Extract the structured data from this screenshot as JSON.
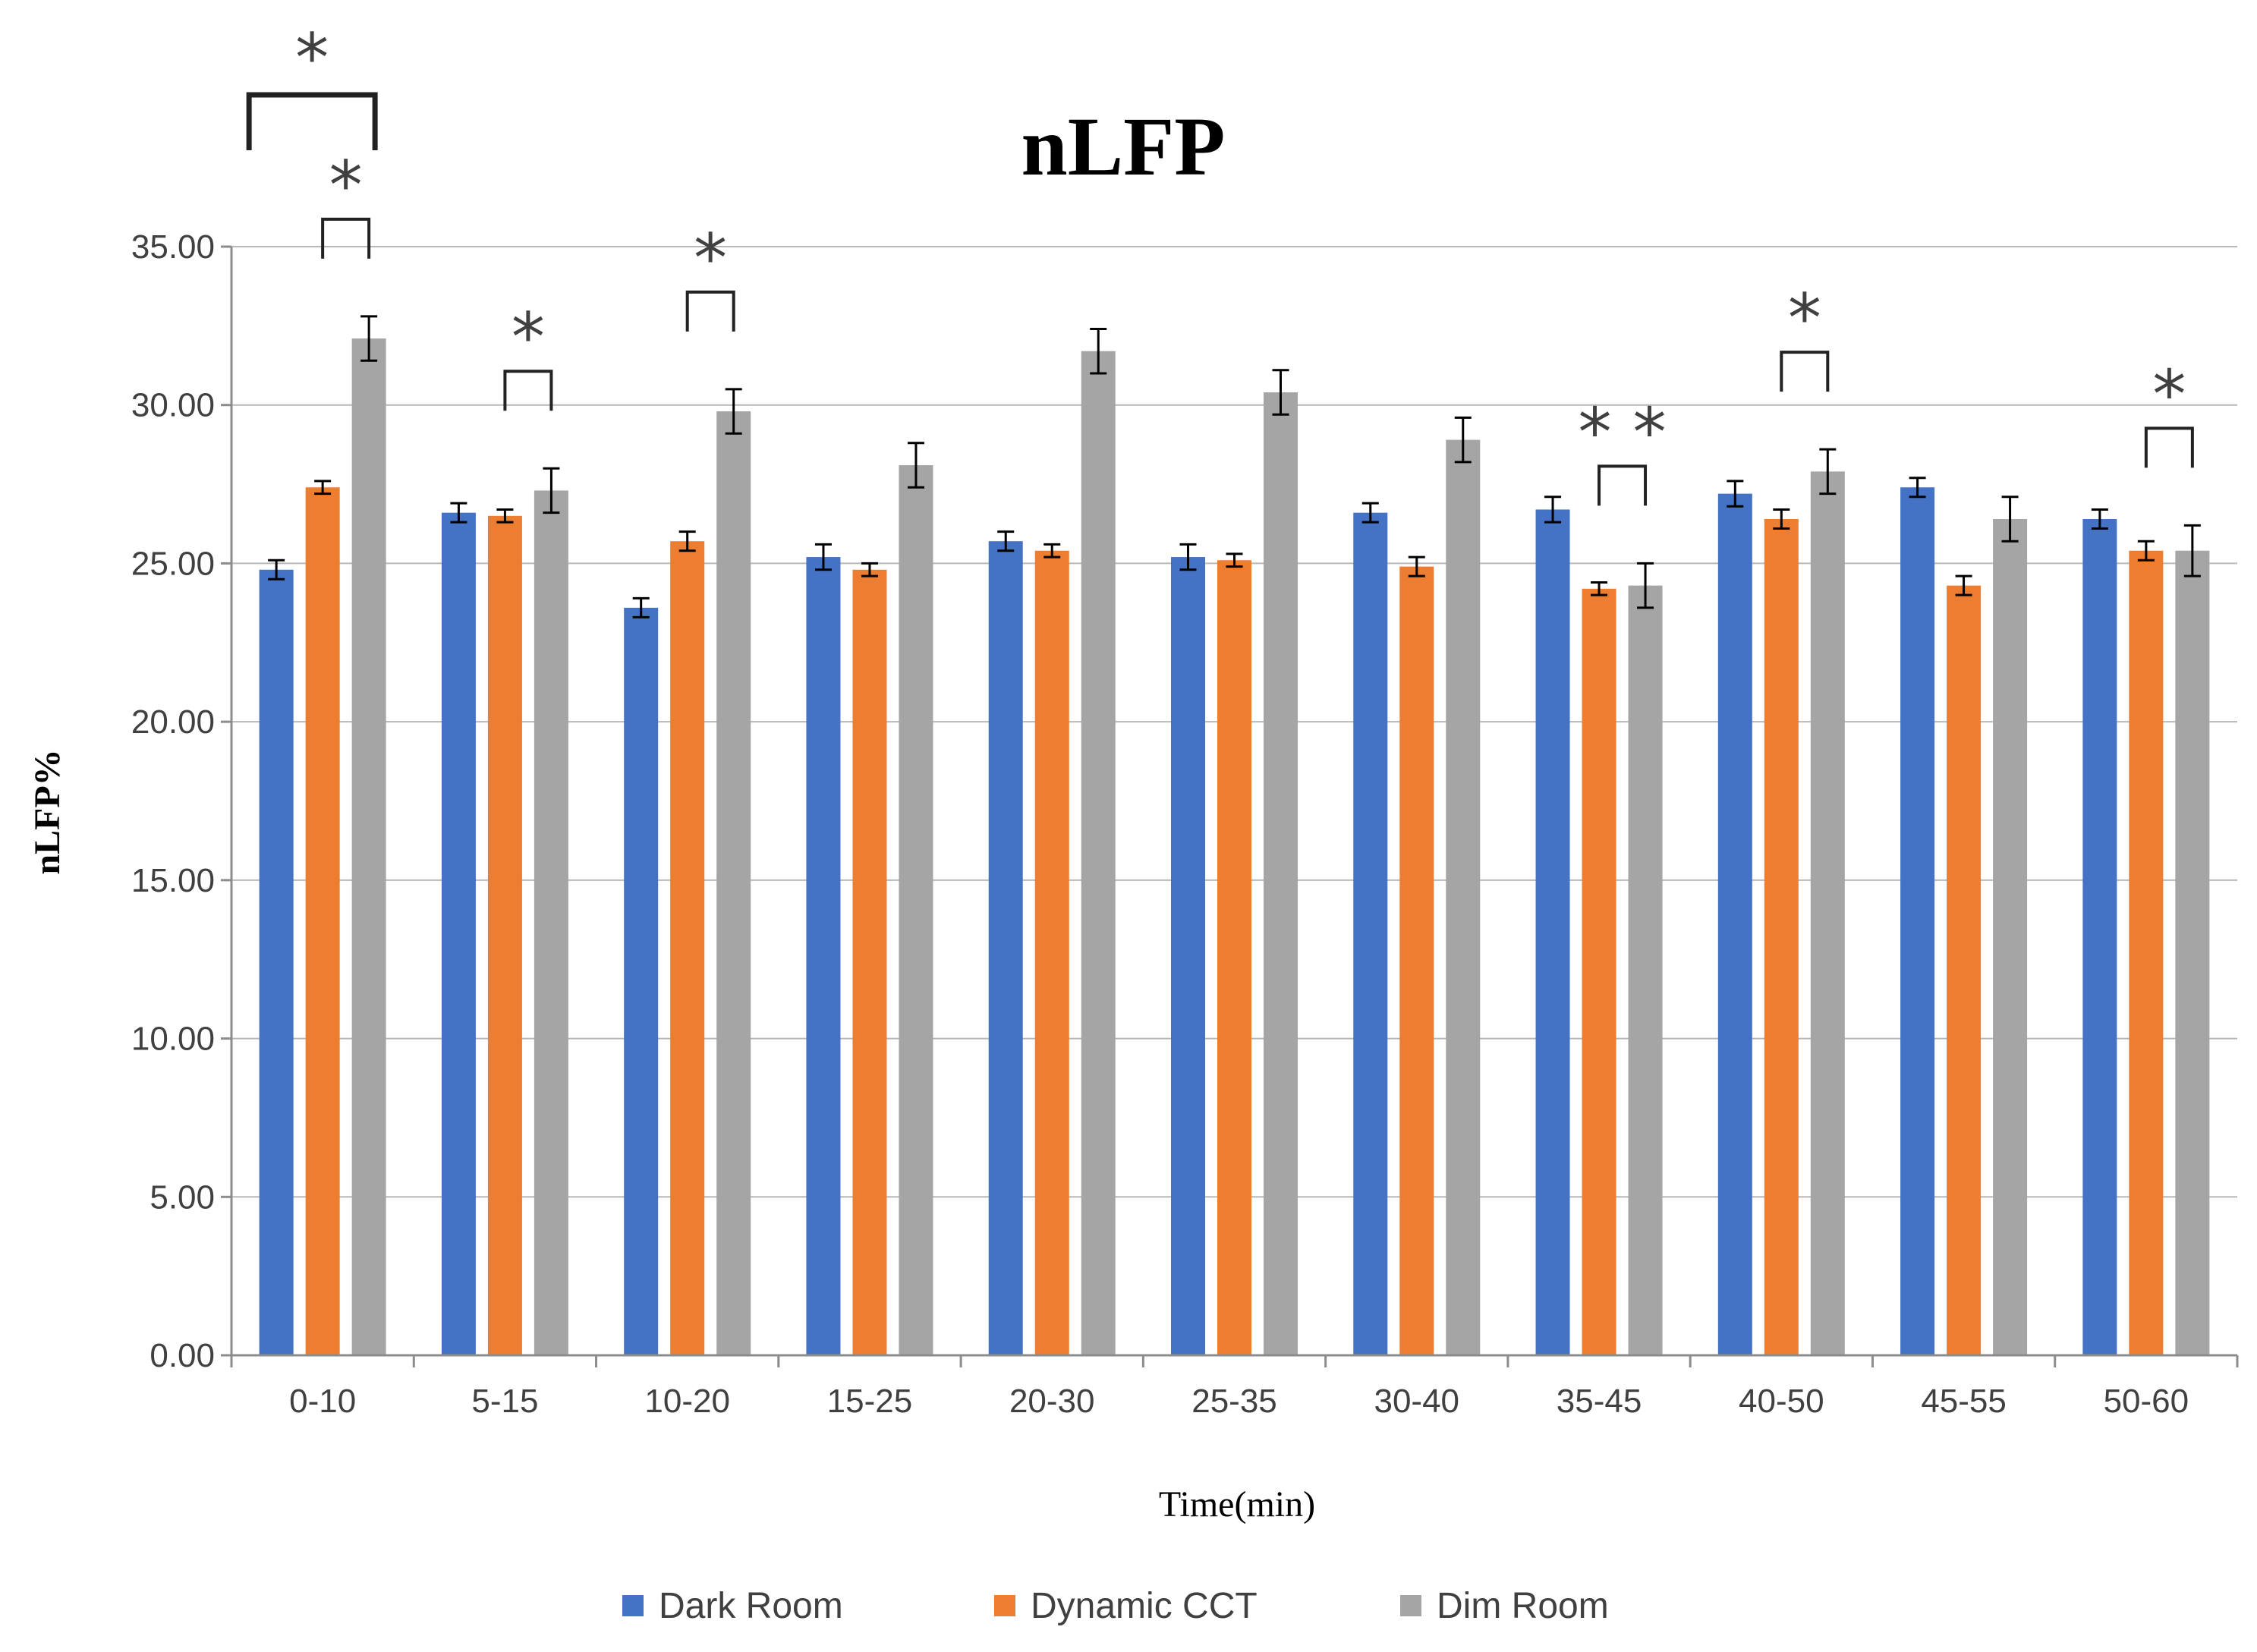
{
  "chart_data": {
    "type": "bar",
    "title": "nLFP",
    "xlabel": "Time(min)",
    "ylabel": "nLFP%",
    "ylim": [
      0,
      35
    ],
    "yticks": [
      "0.00",
      "5.00",
      "10.00",
      "15.00",
      "20.00",
      "25.00",
      "30.00",
      "35.00"
    ],
    "ytick_values": [
      0,
      5,
      10,
      15,
      20,
      25,
      30,
      35
    ],
    "categories": [
      "0-10",
      "5-15",
      "10-20",
      "15-25",
      "20-30",
      "25-35",
      "30-40",
      "35-45",
      "40-50",
      "45-55",
      "50-60"
    ],
    "series": [
      {
        "name": "Dark Room",
        "color": "#4472C4",
        "values": [
          24.8,
          26.6,
          23.6,
          25.2,
          25.7,
          25.2,
          26.6,
          26.7,
          27.2,
          27.4,
          26.4
        ],
        "errors": [
          0.3,
          0.3,
          0.3,
          0.4,
          0.3,
          0.4,
          0.3,
          0.4,
          0.4,
          0.3,
          0.3
        ]
      },
      {
        "name": "Dynamic CCT",
        "color": "#ED7D31",
        "values": [
          27.4,
          26.5,
          25.7,
          24.8,
          25.4,
          25.1,
          24.9,
          24.2,
          26.4,
          24.3,
          25.4
        ],
        "errors": [
          0.2,
          0.2,
          0.3,
          0.2,
          0.2,
          0.2,
          0.3,
          0.2,
          0.3,
          0.3,
          0.3
        ]
      },
      {
        "name": "Dim Room",
        "color": "#A5A5A5",
        "values": [
          32.1,
          27.3,
          29.8,
          28.1,
          31.7,
          30.4,
          28.9,
          24.3,
          27.9,
          26.4,
          25.4
        ],
        "errors": [
          0.7,
          0.7,
          0.7,
          0.7,
          0.7,
          0.7,
          0.7,
          0.7,
          0.7,
          0.7,
          0.8
        ]
      }
    ],
    "annotations": [
      {
        "category": 0,
        "from_series": 0,
        "to_series": 2,
        "label": "*",
        "level": 2
      },
      {
        "category": 0,
        "from_series": 1,
        "to_series": 2,
        "label": "*",
        "level": 1
      },
      {
        "category": 1,
        "from_series": 1,
        "to_series": 2,
        "label": "*",
        "level": 1
      },
      {
        "category": 2,
        "from_series": 1,
        "to_series": 2,
        "label": "*",
        "level": 1
      },
      {
        "category": 7,
        "from_series": 1,
        "to_series": 2,
        "label": "* *",
        "level": 1
      },
      {
        "category": 8,
        "from_series": 1,
        "to_series": 2,
        "label": "*",
        "level": 1
      },
      {
        "category": 10,
        "from_series": 1,
        "to_series": 2,
        "label": "*",
        "level": 1
      }
    ],
    "legend_position": "bottom",
    "grid": true
  }
}
